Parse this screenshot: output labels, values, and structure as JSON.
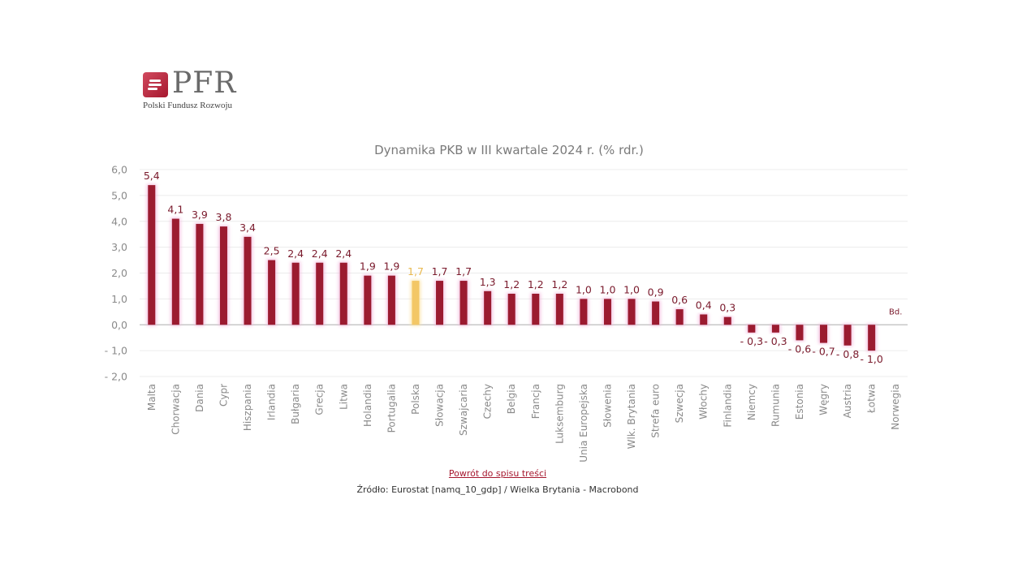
{
  "logo": {
    "name": "PFR",
    "subtitle": "Polski Fundusz Rozwoju"
  },
  "colors": {
    "bar": "#9b1b30",
    "highlight": "#f3c766",
    "label": "#7a1a2c",
    "glow": "#f2b8dc"
  },
  "chart_data": {
    "type": "bar",
    "title": "Dynamika PKB w III kwartale 2024 r. (% rdr.)",
    "categories": [
      "Malta",
      "Chorwacja",
      "Dania",
      "Cypr",
      "Hiszpania",
      "Irlandia",
      "Bułgaria",
      "Grecja",
      "Litwa",
      "Holandia",
      "Portugalia",
      "Polska",
      "Słowacja",
      "Szwajcaria",
      "Czechy",
      "Belgia",
      "Francja",
      "Luksemburg",
      "Unia Europejska",
      "Słowenia",
      "Wlk. Brytania",
      "Strefa euro",
      "Szwecja",
      "Włochy",
      "Finlandia",
      "Niemcy",
      "Rumunia",
      "Estonia",
      "Węgry",
      "Austria",
      "Łotwa",
      "Norwegia"
    ],
    "values": [
      5.4,
      4.1,
      3.9,
      3.8,
      3.4,
      2.5,
      2.4,
      2.4,
      2.4,
      1.9,
      1.9,
      1.7,
      1.7,
      1.7,
      1.3,
      1.2,
      1.2,
      1.2,
      1.0,
      1.0,
      1.0,
      0.9,
      0.6,
      0.4,
      0.3,
      -0.3,
      -0.3,
      -0.6,
      -0.7,
      -0.8,
      -1.0,
      null
    ],
    "value_labels": [
      "5,4",
      "4,1",
      "3,9",
      "3,8",
      "3,4",
      "2,5",
      "2,4",
      "2,4",
      "2,4",
      "1,9",
      "1,9",
      "1,7",
      "1,7",
      "1,7",
      "1,3",
      "1,2",
      "1,2",
      "1,2",
      "1,0",
      "1,0",
      "1,0",
      "0,9",
      "0,6",
      "0,4",
      "0,3",
      "- 0,3",
      "- 0,3",
      "- 0,6",
      "- 0,7",
      "- 0,8",
      "- 1,0",
      "Bd."
    ],
    "highlight": "Polska",
    "ylim": [
      -2.0,
      6.0
    ],
    "yticks": [
      "6,0",
      "5,0",
      "4,0",
      "3,0",
      "2,0",
      "1,0",
      "0,0",
      "- 1,0",
      "- 2,0"
    ],
    "grid": true,
    "legend": "none"
  },
  "footer": {
    "back_link": "Powrót do spisu treści",
    "source": "Źródło: Eurostat [namq_10_gdp] / Wielka Brytania - Macrobond"
  }
}
